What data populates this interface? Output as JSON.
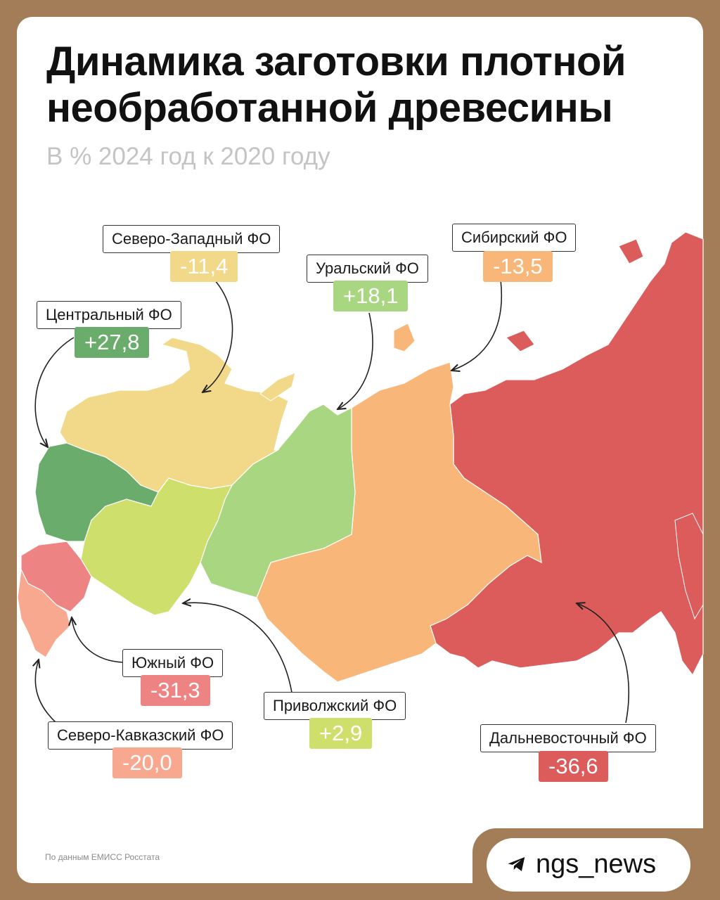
{
  "title": "Динамика заготовки плотной необработанной древесины",
  "subtitle": "В % 2024 год к 2020 году",
  "source": "По данным ЕМИСС Росстата",
  "brand": {
    "name": "ngs_news",
    "icon": "telegram-icon"
  },
  "colors": {
    "background": "#a27d57",
    "central": "#6aac6b",
    "northwest": "#f2d98a",
    "ural": "#a9d680",
    "siberian": "#f8b778",
    "fareast": "#dc5b5b",
    "volga": "#cee06b",
    "south": "#ee8383",
    "north_caucasus": "#f7a88e"
  },
  "districts": [
    {
      "id": "northwest",
      "name": "Северо-Западный ФО",
      "value": "-11,4"
    },
    {
      "id": "central",
      "name": "Центральный ФО",
      "value": "+27,8"
    },
    {
      "id": "ural",
      "name": "Уральский ФО",
      "value": "+18,1"
    },
    {
      "id": "siberian",
      "name": "Сибирский ФО",
      "value": "-13,5"
    },
    {
      "id": "south",
      "name": "Южный ФО",
      "value": "-31,3"
    },
    {
      "id": "volga",
      "name": "Приволжский ФО",
      "value": "+2,9"
    },
    {
      "id": "north_caucasus",
      "name": "Северо-Кавказский ФО",
      "value": "-20,0"
    },
    {
      "id": "fareast",
      "name": "Дальневосточный ФО",
      "value": "-36,6"
    }
  ]
}
